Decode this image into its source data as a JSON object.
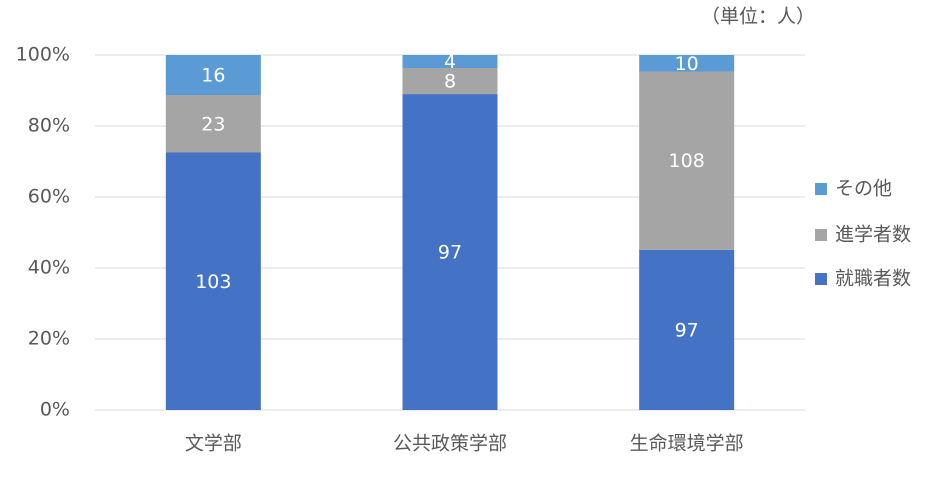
{
  "chart_data": {
    "type": "bar",
    "stacking": "percent",
    "unit_note": "（単位：人）",
    "categories": [
      "文学部",
      "公共政策学部",
      "生命環境学部"
    ],
    "series": [
      {
        "name": "就職者数",
        "color": "#4472c4",
        "values": [
          103,
          97,
          97
        ]
      },
      {
        "name": "進学者数",
        "color": "#a5a5a5",
        "values": [
          23,
          8,
          108
        ]
      },
      {
        "name": "その他",
        "color": "#5b9bd5",
        "values": [
          16,
          4,
          10
        ]
      }
    ],
    "ylim": [
      0,
      100
    ],
    "yticks": [
      {
        "value": 0,
        "label": "0%"
      },
      {
        "value": 20,
        "label": "20%"
      },
      {
        "value": 40,
        "label": "40%"
      },
      {
        "value": 60,
        "label": "60%"
      },
      {
        "value": 80,
        "label": "80%"
      },
      {
        "value": 100,
        "label": "100%"
      }
    ],
    "grid": true,
    "legend": "right"
  }
}
